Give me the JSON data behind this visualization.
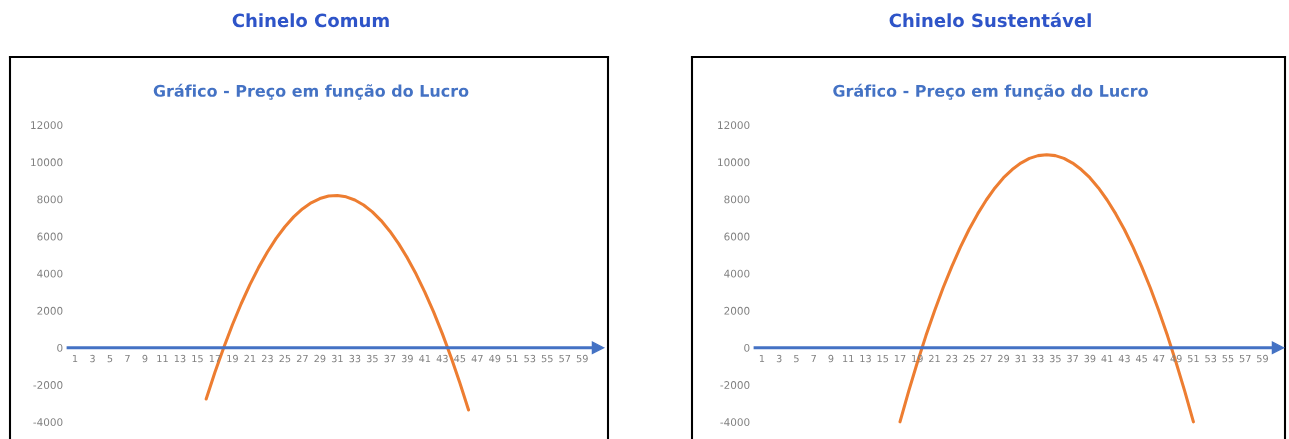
{
  "chart_data": [
    {
      "type": "line",
      "title": "Chinelo Comum",
      "subtitle": "Gráfico - Preço em função do Lucro",
      "categories": [
        "1",
        null,
        "3",
        null,
        "5",
        null,
        "7",
        null,
        "9",
        null,
        "11",
        null,
        "13",
        null,
        "15",
        null,
        "17",
        null,
        "19",
        null,
        "21",
        null,
        "23",
        null,
        "25",
        null,
        "27",
        null,
        "29",
        null,
        "31",
        null,
        "33",
        null,
        "35",
        null,
        "37",
        null,
        "39",
        null,
        "41",
        null,
        "43",
        null,
        "45",
        null,
        "47",
        null,
        "49",
        null,
        "51",
        null,
        "53",
        null,
        "55",
        null,
        "57",
        null,
        "59",
        null
      ],
      "series": [
        {
          "color": "#ed7d31",
          "values": [
            null,
            null,
            null,
            null,
            null,
            null,
            null,
            null,
            null,
            null,
            null,
            null,
            null,
            null,
            null,
            -2760,
            -1320,
            0,
            1240,
            2370,
            3400,
            4330,
            5160,
            5890,
            6520,
            7050,
            7480,
            7810,
            8040,
            8170,
            8200,
            8130,
            7960,
            7690,
            7320,
            6850,
            6280,
            5610,
            4840,
            3970,
            3000,
            1930,
            760,
            -510,
            -1880,
            -3350,
            null,
            null,
            null,
            null,
            null,
            null,
            null,
            null,
            null,
            null,
            null,
            null,
            null,
            null
          ]
        }
      ],
      "ylim": [
        -4000,
        12000
      ],
      "yticks": [
        -4000,
        -2000,
        0,
        2000,
        4000,
        6000,
        8000,
        10000,
        12000
      ],
      "grid": false
    },
    {
      "type": "line",
      "title": "Chinelo Sustentável",
      "subtitle": "Gráfico - Preço em função do Lucro",
      "categories": [
        "1",
        null,
        "3",
        null,
        "5",
        null,
        "7",
        null,
        "9",
        null,
        "11",
        null,
        "13",
        null,
        "15",
        null,
        "17",
        null,
        "19",
        null,
        "21",
        null,
        "23",
        null,
        "25",
        null,
        "27",
        null,
        "29",
        null,
        "31",
        null,
        "33",
        null,
        "35",
        null,
        "37",
        null,
        "39",
        null,
        "41",
        null,
        "43",
        null,
        "45",
        null,
        "47",
        null,
        "49",
        null,
        "51",
        null,
        "53",
        null,
        "55",
        null,
        "57",
        null,
        "59",
        null
      ],
      "series": [
        {
          "color": "#ed7d31",
          "values": [
            null,
            null,
            null,
            null,
            null,
            null,
            null,
            null,
            null,
            null,
            null,
            null,
            null,
            null,
            null,
            null,
            -3990,
            -2350,
            -810,
            640,
            1980,
            3230,
            4370,
            5420,
            6370,
            7210,
            7960,
            8610,
            9160,
            9600,
            9950,
            10200,
            10350,
            10400,
            10350,
            10200,
            9950,
            9600,
            9160,
            8610,
            7960,
            7210,
            6370,
            5420,
            4370,
            3230,
            1980,
            640,
            -810,
            -2350,
            -3990,
            null,
            null,
            null,
            null,
            null,
            null,
            null,
            null,
            null
          ]
        }
      ],
      "ylim": [
        -4000,
        12000
      ],
      "yticks": [
        -4000,
        -2000,
        0,
        2000,
        4000,
        6000,
        8000,
        10000,
        12000
      ],
      "grid": false
    }
  ]
}
